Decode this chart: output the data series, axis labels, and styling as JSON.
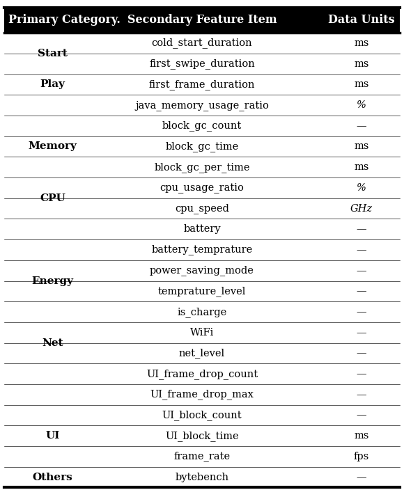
{
  "header": [
    "Primary Category.",
    "Secondary Feature Item",
    "Data Units"
  ],
  "rows": [
    [
      "Start",
      "cold_start_duration",
      "ms"
    ],
    [
      "",
      "first_swipe_duration",
      "ms"
    ],
    [
      "Play",
      "first_frame_duration",
      "ms"
    ],
    [
      "",
      "java_memory_usage_ratio",
      "%"
    ],
    [
      "Memory",
      "block_gc_count",
      "—"
    ],
    [
      "",
      "block_gc_time",
      "ms"
    ],
    [
      "",
      "block_gc_per_time",
      "ms"
    ],
    [
      "CPU",
      "cpu_usage_ratio",
      "%"
    ],
    [
      "",
      "cpu_speed",
      "GHz"
    ],
    [
      "",
      "battery",
      "—"
    ],
    [
      "Energy",
      "battery_temprature",
      "—"
    ],
    [
      "",
      "power_saving_mode",
      "—"
    ],
    [
      "",
      "temprature_level",
      "—"
    ],
    [
      "",
      "is_charge",
      "—"
    ],
    [
      "Net",
      "WiFi",
      "—"
    ],
    [
      "",
      "net_level",
      "—"
    ],
    [
      "",
      "UI_frame_drop_count",
      "—"
    ],
    [
      "",
      "UI_frame_drop_max",
      "—"
    ],
    [
      "UI",
      "UI_block_count",
      "—"
    ],
    [
      "",
      "UI_block_time",
      "ms"
    ],
    [
      "",
      "frame_rate",
      "fps"
    ],
    [
      "Others",
      "bytebench",
      "—"
    ]
  ],
  "italic_unit_rows": [
    3,
    7,
    8
  ],
  "primary_placements": [
    [
      "Start",
      0,
      1
    ],
    [
      "Play",
      2,
      2
    ],
    [
      "Memory",
      4,
      6
    ],
    [
      "CPU",
      7,
      8
    ],
    [
      "Energy",
      10,
      13
    ],
    [
      "Net",
      14,
      15
    ],
    [
      "UI",
      18,
      20
    ],
    [
      "Others",
      21,
      21
    ]
  ],
  "header_fontsize": 11.5,
  "row_fontsize": 10.5,
  "primary_fontsize": 11,
  "background_color": "#ffffff"
}
